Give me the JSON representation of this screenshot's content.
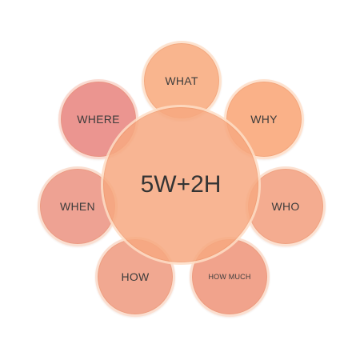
{
  "diagram": {
    "center": {
      "label": "5W+2H",
      "color": "#F7A981"
    },
    "items": [
      {
        "key": "what",
        "label": "WHAT",
        "color": "#F8A676"
      },
      {
        "key": "why",
        "label": "WHY",
        "color": "#F9A16F"
      },
      {
        "key": "who",
        "label": "WHO",
        "color": "#F29A78"
      },
      {
        "key": "how_much",
        "label": "HOW MUCH",
        "color": "#EE8F74"
      },
      {
        "key": "how",
        "label": "HOW",
        "color": "#EF9579"
      },
      {
        "key": "when",
        "label": "WHEN",
        "color": "#EB8E7C"
      },
      {
        "key": "where",
        "label": "WHERE",
        "color": "#E77E78"
      }
    ]
  }
}
